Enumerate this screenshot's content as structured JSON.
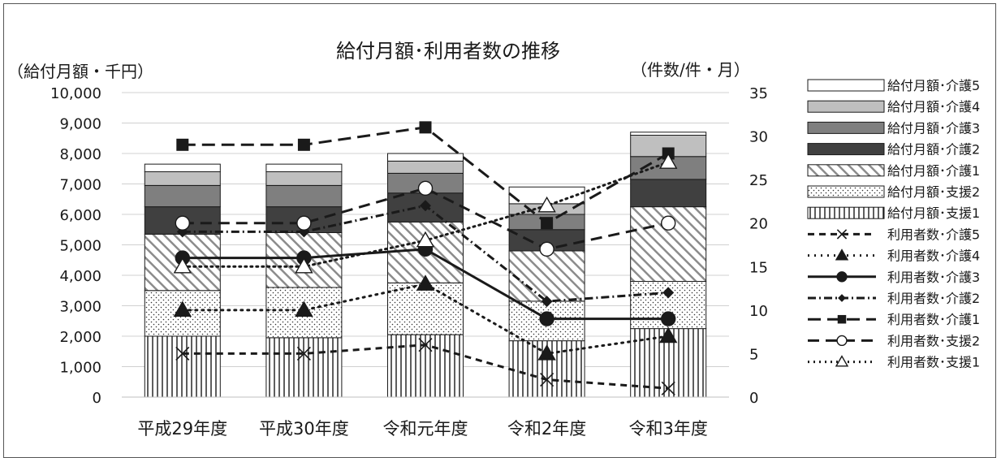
{
  "chart_data": {
    "type": "bar",
    "title": "給付月額･利用者数の推移",
    "ylabel_left": "（給付月額・千円）",
    "ylabel_right": "（件数/件・月）",
    "categories": [
      "平成29年度",
      "平成30年度",
      "令和元年度",
      "令和2年度",
      "令和3年度"
    ],
    "y_left": {
      "min": 0,
      "max": 10000,
      "step": 1000,
      "tick_labels": [
        "0",
        "1,000",
        "2,000",
        "3,000",
        "4,000",
        "5,000",
        "6,000",
        "7,000",
        "8,000",
        "9,000",
        "10,000"
      ]
    },
    "y_right": {
      "min": 0,
      "max": 35,
      "step": 5,
      "tick_labels": [
        "0",
        "5",
        "10",
        "15",
        "20",
        "25",
        "30",
        "35"
      ]
    },
    "grid": "horizontal",
    "legend_position": "right",
    "bar_series": [
      {
        "name": "給付月額･支援1",
        "values": [
          2000,
          1950,
          2050,
          1850,
          2250
        ],
        "pattern": "vertical-lines"
      },
      {
        "name": "給付月額･支援2",
        "values": [
          1500,
          1650,
          1700,
          1300,
          1550
        ],
        "pattern": "dots"
      },
      {
        "name": "給付月額･介護1",
        "values": [
          1850,
          1800,
          2000,
          1650,
          2450
        ],
        "pattern": "diagonal"
      },
      {
        "name": "給付月額･介護2",
        "values": [
          900,
          850,
          950,
          700,
          900
        ],
        "color": "#404040"
      },
      {
        "name": "給付月額･介護3",
        "values": [
          700,
          700,
          650,
          500,
          750
        ],
        "color": "#7f7f7f"
      },
      {
        "name": "給付月額･介護4",
        "values": [
          450,
          450,
          400,
          350,
          700
        ],
        "color": "#bfbfbf"
      },
      {
        "name": "給付月額･介護5",
        "values": [
          250,
          250,
          250,
          550,
          100
        ],
        "color": "#ffffff"
      }
    ],
    "line_series": [
      {
        "name": "利用者数･介護5",
        "values": [
          5,
          5,
          6,
          2,
          1
        ],
        "marker": "x",
        "dash": "8,6"
      },
      {
        "name": "利用者数･介護4",
        "values": [
          10,
          10,
          13,
          5,
          7
        ],
        "marker": "triangle-filled",
        "dash": "2,6"
      },
      {
        "name": "利用者数･介護3",
        "values": [
          16,
          16,
          17,
          9,
          9
        ],
        "marker": "circle-filled",
        "dash": ""
      },
      {
        "name": "利用者数･介護2",
        "values": [
          19,
          19,
          22,
          11,
          12
        ],
        "marker": "diamond-filled",
        "dash": "10,4,2,4"
      },
      {
        "name": "利用者数･介護1",
        "values": [
          29,
          29,
          31,
          20,
          28
        ],
        "marker": "square-filled",
        "dash": "16,8"
      },
      {
        "name": "利用者数･支援2",
        "values": [
          20,
          20,
          24,
          17,
          20
        ],
        "marker": "circle-open",
        "dash": "14,8"
      },
      {
        "name": "利用者数･支援1",
        "values": [
          15,
          15,
          18,
          22,
          27
        ],
        "marker": "triangle-open",
        "dash": "2,5"
      }
    ]
  }
}
